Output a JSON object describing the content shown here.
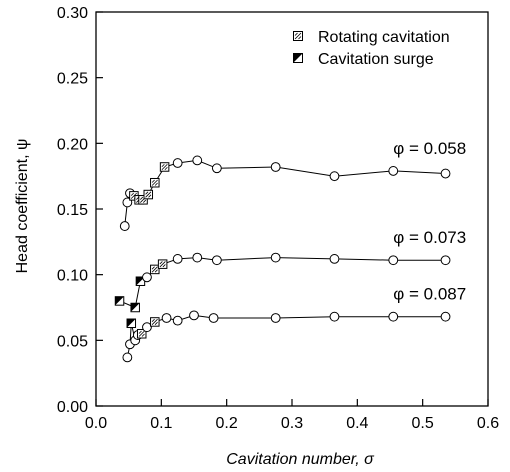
{
  "chart_data": {
    "type": "line",
    "xlabel": "Cavitation number, σ",
    "ylabel": "Head coefficient, ψ",
    "xlim": [
      0.0,
      0.6
    ],
    "ylim": [
      0.0,
      0.3
    ],
    "xticks": [
      "0.0",
      "0.1",
      "0.2",
      "0.3",
      "0.4",
      "0.5",
      "0.6"
    ],
    "yticks": [
      "0.00",
      "0.05",
      "0.10",
      "0.15",
      "0.20",
      "0.25",
      "0.30"
    ],
    "grid": false,
    "legend_position": "top-right",
    "legend": [
      {
        "label": "Rotating cavitation",
        "marker": "square-diagonal-light"
      },
      {
        "label": "Cavitation surge",
        "marker": "square-half-filled"
      }
    ],
    "series": [
      {
        "name": "φ = 0.058",
        "x": [
          0.044,
          0.048,
          0.052,
          0.058,
          0.066,
          0.072,
          0.08,
          0.09,
          0.105,
          0.125,
          0.155,
          0.185,
          0.275,
          0.365,
          0.455,
          0.535
        ],
        "y": [
          0.137,
          0.155,
          0.162,
          0.16,
          0.157,
          0.157,
          0.161,
          0.17,
          0.182,
          0.185,
          0.187,
          0.181,
          0.182,
          0.175,
          0.179,
          0.177
        ],
        "markers": [
          "circle",
          "circle",
          "circle",
          "rotating",
          "rotating",
          "rotating",
          "rotating",
          "rotating",
          "rotating",
          "circle",
          "circle",
          "circle",
          "circle",
          "circle",
          "circle",
          "circle"
        ]
      },
      {
        "name": "φ = 0.073",
        "x": [
          0.036,
          0.06,
          0.068,
          0.078,
          0.09,
          0.102,
          0.125,
          0.155,
          0.185,
          0.275,
          0.365,
          0.455,
          0.535
        ],
        "y": [
          0.08,
          0.075,
          0.095,
          0.098,
          0.104,
          0.108,
          0.112,
          0.113,
          0.111,
          0.113,
          0.112,
          0.111,
          0.111
        ],
        "markers": [
          "surge",
          "surge",
          "surge",
          "circle",
          "rotating",
          "rotating",
          "circle",
          "circle",
          "circle",
          "circle",
          "circle",
          "circle",
          "circle"
        ]
      },
      {
        "name": "φ = 0.087",
        "x": [
          0.048,
          0.052,
          0.054,
          0.06,
          0.064,
          0.07,
          0.078,
          0.09,
          0.108,
          0.125,
          0.15,
          0.18,
          0.275,
          0.365,
          0.455,
          0.535
        ],
        "y": [
          0.037,
          0.047,
          0.063,
          0.05,
          0.054,
          0.055,
          0.06,
          0.064,
          0.067,
          0.065,
          0.069,
          0.067,
          0.067,
          0.068,
          0.068,
          0.068
        ],
        "markers": [
          "circle",
          "circle",
          "surge",
          "circle",
          "circle",
          "rotating",
          "circle",
          "rotating",
          "circle",
          "circle",
          "circle",
          "circle",
          "circle",
          "circle",
          "circle",
          "circle"
        ]
      }
    ],
    "annotations": [
      {
        "text": "φ = 0.058",
        "x": 0.455,
        "y": 0.192
      },
      {
        "text": "φ = 0.073",
        "x": 0.455,
        "y": 0.124
      },
      {
        "text": "φ = 0.087",
        "x": 0.455,
        "y": 0.081
      }
    ]
  }
}
